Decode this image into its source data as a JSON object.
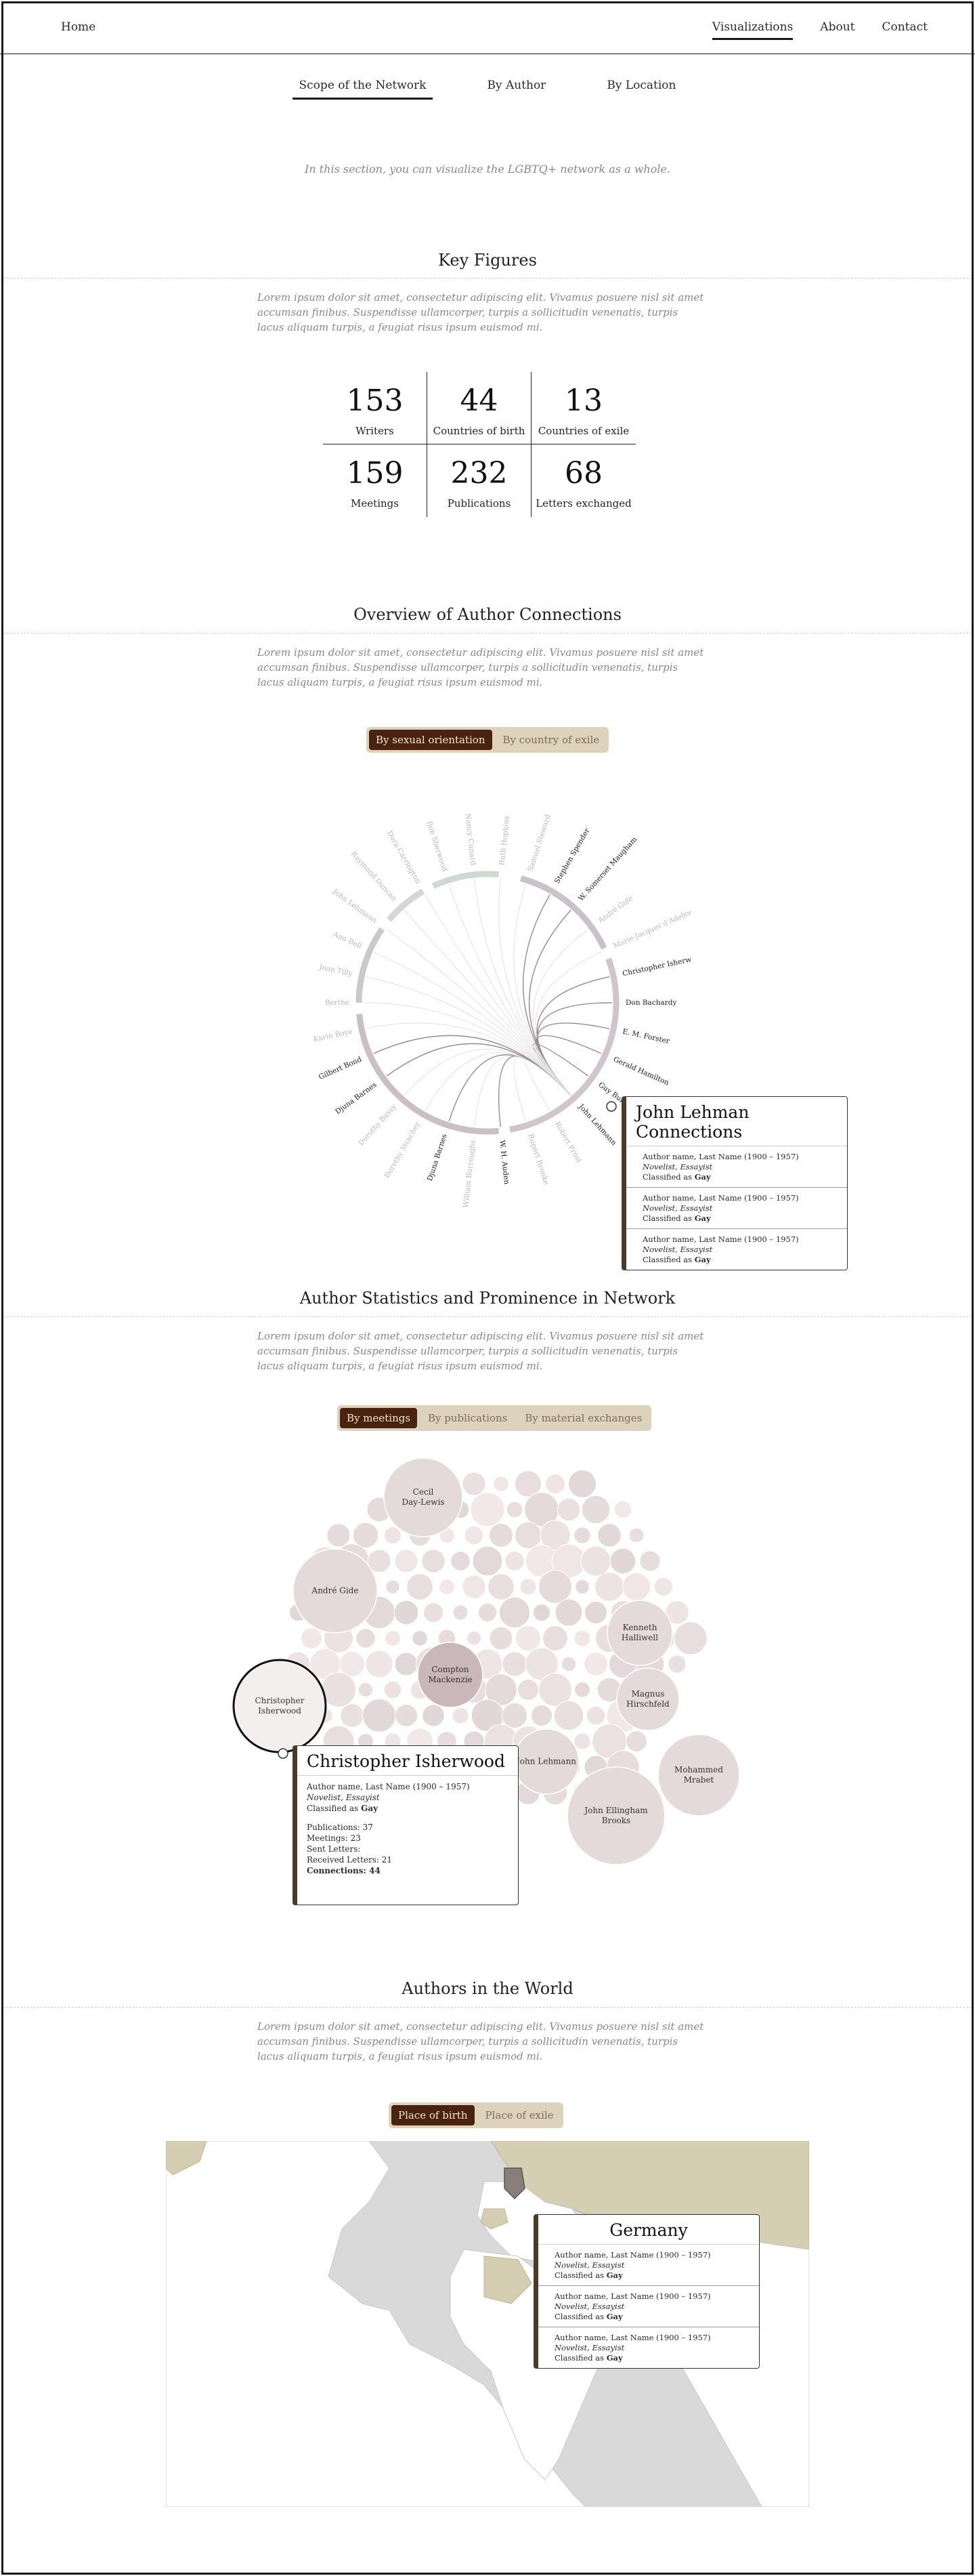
{
  "nav": {
    "home": "Home",
    "links": [
      {
        "label": "Visualizations",
        "active": true
      },
      {
        "label": "About",
        "active": false
      },
      {
        "label": "Contact",
        "active": false
      }
    ]
  },
  "subtabs": [
    "Scope of the Network",
    "By Author",
    "By Location"
  ],
  "intro": "In this section, you can visualize the LGBTQ+ network as a whole.",
  "lorem": "Lorem ipsum dolor sit amet, consectetur adipiscing elit. Vivamus posuere nisl sit amet accumsan finibus. Suspendisse ullamcorper, turpis a sollicitudin venenatis, turpis lacus aliquam turpis, a feugiat risus ipsum euismod mi.",
  "key_figures": {
    "title": "Key Figures",
    "items": [
      {
        "value": "153",
        "label": "Writers"
      },
      {
        "value": "44",
        "label": "Countries of birth"
      },
      {
        "value": "13",
        "label": "Countries of exile"
      },
      {
        "value": "159",
        "label": "Meetings"
      },
      {
        "value": "232",
        "label": "Publications"
      },
      {
        "value": "68",
        "label": "Letters exchanged"
      }
    ]
  },
  "connections": {
    "title": "Overview of Author Connections",
    "toggle": [
      "By sexual orientation",
      "By country of exile"
    ],
    "labels": [
      {
        "name": "Stephen Spender",
        "dark": true
      },
      {
        "name": "W. Somerset Maugham",
        "dark": true
      },
      {
        "name": "André Gide",
        "dark": false
      },
      {
        "name": "Marie-Jacques d'Adelswärd-Fersen",
        "dark": false
      },
      {
        "name": "Christopher Isherwood",
        "dark": true
      },
      {
        "name": "Don Bachardy",
        "dark": true
      },
      {
        "name": "E. M. Forster",
        "dark": true
      },
      {
        "name": "Gerald Hamilton",
        "dark": true
      },
      {
        "name": "Guy Burgess",
        "dark": true
      },
      {
        "name": "John Lehmann",
        "dark": true
      },
      {
        "name": "Robert Frost",
        "dark": false
      },
      {
        "name": "Rupert Brooke",
        "dark": false
      },
      {
        "name": "W. H. Auden",
        "dark": true
      },
      {
        "name": "William Burroughs",
        "dark": false
      },
      {
        "name": "Djuna Barnes",
        "dark": true
      },
      {
        "name": "Dorothy Strachey",
        "dark": false
      },
      {
        "name": "Dorothy Bussy",
        "dark": false
      },
      {
        "name": "Djuna Barnes",
        "dark": true
      },
      {
        "name": "Gilbert Bond",
        "dark": true
      },
      {
        "name": "Karin Boye",
        "dark": false
      },
      {
        "name": "Berthe",
        "dark": false
      },
      {
        "name": "Joan Tilly",
        "dark": false
      },
      {
        "name": "Ann Bell",
        "dark": false
      },
      {
        "name": "John Lehmann",
        "dark": false
      },
      {
        "name": "Raymond Duncan",
        "dark": false
      },
      {
        "name": "Dora Carrington",
        "dark": false
      },
      {
        "name": "Bob Sherwood",
        "dark": false
      },
      {
        "name": "Nancy Cunard",
        "dark": false
      },
      {
        "name": "Ruth Hopkins",
        "dark": false
      },
      {
        "name": "Samuel Steward",
        "dark": false
      }
    ],
    "popup": {
      "title": "John Lehman Connections",
      "entries": [
        {
          "line1": "Author name, Last Name (1900 – 1957)",
          "line2": "Novelist, Essayist",
          "line3a": "Classified as ",
          "line3b": "Gay"
        },
        {
          "line1": "Author name, Last Name (1900 – 1957)",
          "line2": "Novelist, Essayist",
          "line3a": "Classified as ",
          "line3b": "Gay"
        },
        {
          "line1": "Author name, Last Name (1900 – 1957)",
          "line2": "Novelist, Essayist",
          "line3a": "Classified as ",
          "line3b": "Gay"
        }
      ]
    }
  },
  "prominence": {
    "title": "Author Statistics and Prominence in Network",
    "toggle": [
      "By meetings",
      "By publications",
      "By material exchanges"
    ],
    "named_bubbles": [
      "Cecil Day-Lewis",
      "André Gide",
      "Kenneth Halliwell",
      "Compton Mackenzie",
      "Magnus Hirschfeld",
      "Christopher Isherwood",
      "John Lehmann",
      "Mohammed Mrabet",
      "John Ellingham Brooks"
    ],
    "popup": {
      "title": "Christopher Isherwood",
      "line1": "Author name, Last Name (1900 – 1957)",
      "line2": "Novelist, Essayist",
      "line3a": "Classified as ",
      "line3b": "Gay",
      "stats": [
        "Publications: 37",
        "Meetings: 23",
        "Sent Letters:",
        "Received Letters: 21",
        "Connections: 44"
      ]
    }
  },
  "world": {
    "title": "Authors in the World",
    "toggle": [
      "Place of birth",
      "Place of exile"
    ],
    "popup": {
      "title": "Germany",
      "entries": [
        {
          "line1": "Author name, Last Name (1900 – 1957)",
          "line2": "Novelist, Essayist",
          "line3a": "Classified as ",
          "line3b": "Gay"
        },
        {
          "line1": "Author name, Last Name (1900 – 1957)",
          "line2": "Novelist, Essayist",
          "line3a": "Classified as ",
          "line3b": "Gay"
        },
        {
          "line1": "Author name, Last Name (1900 – 1957)",
          "line2": "Novelist, Essayist",
          "line3a": "Classified as ",
          "line3b": "Gay"
        }
      ]
    }
  },
  "colors": {
    "accent": "#4a2212",
    "toggle_bg": "#ddd3bc",
    "map_land": "#d9d9d9",
    "map_highlight": "#d6ceb2",
    "map_selected": "#8a7f78"
  }
}
